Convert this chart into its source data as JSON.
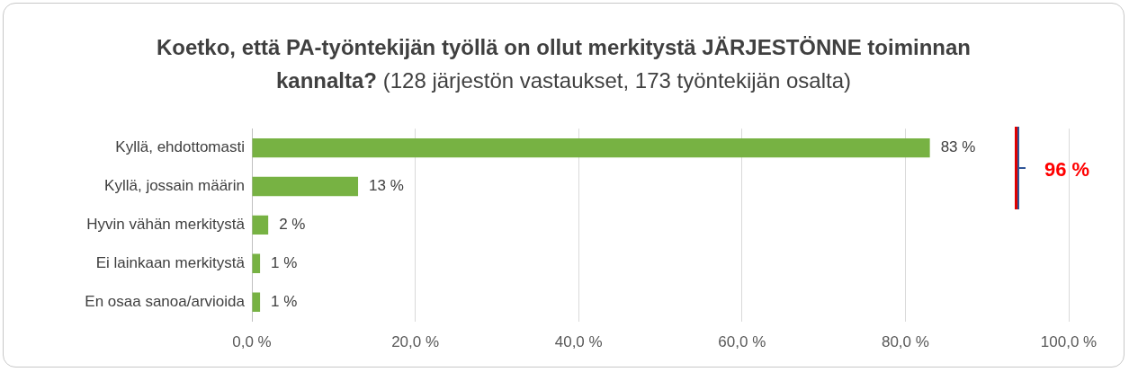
{
  "chart_data": {
    "type": "bar",
    "orientation": "horizontal",
    "title": "Koetko, että PA-työntekijän työllä on ollut merkitystä JÄRJESTÖNNE toiminnan kannalta?",
    "subtitle": "(128 järjestön vastaukset, 173 työntekijän osalta)",
    "categories": [
      "Kyllä, ehdottomasti",
      "Kyllä, jossain määrin",
      "Hyvin vähän merkitystä",
      "Ei lainkaan merkitystä",
      "En osaa sanoa/arvioida"
    ],
    "values": [
      83,
      13,
      2,
      1,
      1
    ],
    "color": "#77b243",
    "value_labels": [
      "83 %",
      "13 %",
      "2 %",
      "1 %",
      "1 %"
    ],
    "xlim": [
      0,
      100
    ],
    "xticks": [
      {
        "value": 0,
        "label": "0,0 %"
      },
      {
        "value": 20,
        "label": "20,0 %"
      },
      {
        "value": 40,
        "label": "40,0 %"
      },
      {
        "value": 60,
        "label": "60,0 %"
      },
      {
        "value": 80,
        "label": "80,0 %"
      },
      {
        "value": 100,
        "label": "100,0 %"
      }
    ],
    "grid": "x",
    "legend": false,
    "annotations": [
      "96 %"
    ]
  }
}
